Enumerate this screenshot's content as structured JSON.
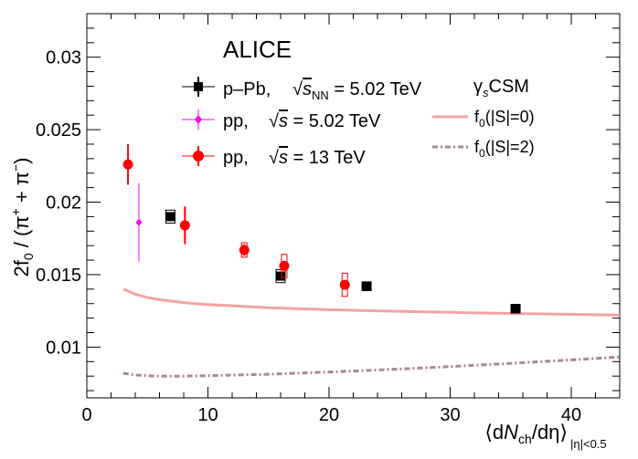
{
  "chart_data": {
    "type": "scatter",
    "title": "ALICE",
    "xlabel": {
      "prefix": "⟨d",
      "n": "N",
      "sub": "ch",
      "mid": "/dη⟩",
      "range": "|η|<0.5"
    },
    "ylabel": {
      "prefix": "2f",
      "sub": "0",
      "mid": " / (π",
      "sup1": "+",
      "plus": " + π",
      "sup2": "−",
      "end": ")"
    },
    "xlim": [
      0,
      44
    ],
    "ylim": [
      0.0065,
      0.033
    ],
    "x_ticks": [
      0,
      10,
      20,
      30,
      40
    ],
    "x_tick_labels": [
      "0",
      "10",
      "20",
      "30",
      "40"
    ],
    "y_ticks": [
      0.01,
      0.015,
      0.02,
      0.025,
      0.03
    ],
    "y_tick_labels": [
      "0.01",
      "0.015",
      "0.02",
      "0.025",
      "0.03"
    ],
    "grid": false,
    "series": [
      {
        "key": "ppb",
        "label": "p–Pb,",
        "energy_prefix": "√",
        "energy_var": "s",
        "energy_sub": "NN",
        "energy_value": " = 5.02 TeV",
        "color": "#000000",
        "marker": "square",
        "points": [
          {
            "x": 6.9,
            "y": 0.019,
            "stat": 0.0003,
            "sys": 0.00045
          },
          {
            "x": 16.0,
            "y": 0.0149,
            "stat": 0.0003,
            "sys": 0.00045
          },
          {
            "x": 23.1,
            "y": 0.0142,
            "stat": 0.0003,
            "sys": 0.0003
          },
          {
            "x": 35.4,
            "y": 0.01265,
            "stat": 0.0003,
            "sys": 0.0003
          }
        ]
      },
      {
        "key": "pp502",
        "label": "pp,",
        "energy_prefix": "√",
        "energy_var": "s",
        "energy_sub": "",
        "energy_value": " = 5.02 TeV",
        "color": "#ff00ff",
        "marker": "diamond",
        "points": [
          {
            "x": 4.3,
            "y": 0.0186,
            "stat": 0.0027,
            "sys": 0.0
          }
        ]
      },
      {
        "key": "pp13",
        "label": "pp,",
        "energy_prefix": "√",
        "energy_var": "s",
        "energy_sub": "",
        "energy_value": " = 13 TeV",
        "color": "#ff0000",
        "marker": "circle",
        "points": [
          {
            "x": 3.4,
            "y": 0.0226,
            "stat": 0.0014,
            "sys": 0.0
          },
          {
            "x": 8.1,
            "y": 0.0184,
            "stat": 0.0013,
            "sys": 0.0
          },
          {
            "x": 13.0,
            "y": 0.0167,
            "stat": 0.0004,
            "sys": 0.0005
          },
          {
            "x": 16.3,
            "y": 0.0156,
            "stat": 0.0003,
            "sys": 0.0008
          },
          {
            "x": 21.3,
            "y": 0.0143,
            "stat": 0.0003,
            "sys": 0.0008
          }
        ]
      }
    ],
    "model": {
      "title_prefix": "γ",
      "title_sub": "s",
      "title_suffix": "CSM",
      "curves": [
        {
          "key": "s0",
          "label_prefix": "f",
          "label_sub": "0",
          "label_suffix": "(|S|=0)",
          "color": "#f4a3a3",
          "style": "solid",
          "x": [
            3,
            4,
            5,
            6,
            8,
            10,
            15,
            20,
            25,
            30,
            35,
            40,
            44
          ],
          "y": [
            0.014,
            0.01365,
            0.01342,
            0.01327,
            0.01307,
            0.01294,
            0.01272,
            0.01258,
            0.01248,
            0.0124,
            0.01232,
            0.01226,
            0.0122
          ]
        },
        {
          "key": "s2",
          "label_prefix": "f",
          "label_sub": "0",
          "label_suffix": "(|S|=2)",
          "color": "#a88888",
          "style": "dashdot",
          "x": [
            3,
            4,
            5,
            6,
            8,
            10,
            15,
            20,
            25,
            30,
            35,
            40,
            44
          ],
          "y": [
            0.0082,
            0.00808,
            0.00802,
            0.008,
            0.008,
            0.00803,
            0.00813,
            0.00828,
            0.00846,
            0.00866,
            0.00888,
            0.00912,
            0.00932
          ]
        }
      ]
    }
  }
}
